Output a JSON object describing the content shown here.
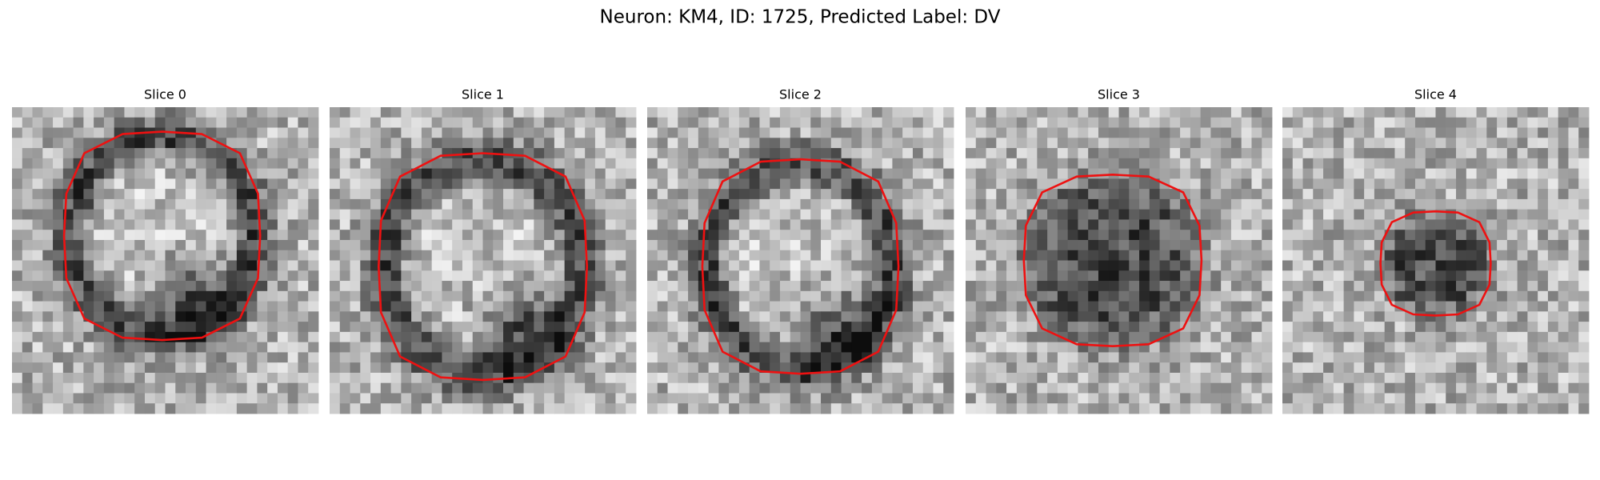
{
  "title": "Neuron: KM4, ID: 1725, Predicted Label: DV",
  "panels": [
    {
      "title": "Slice 0"
    },
    {
      "title": "Slice 1"
    },
    {
      "title": "Slice 2"
    },
    {
      "title": "Slice 3"
    },
    {
      "title": "Slice 4"
    }
  ]
}
